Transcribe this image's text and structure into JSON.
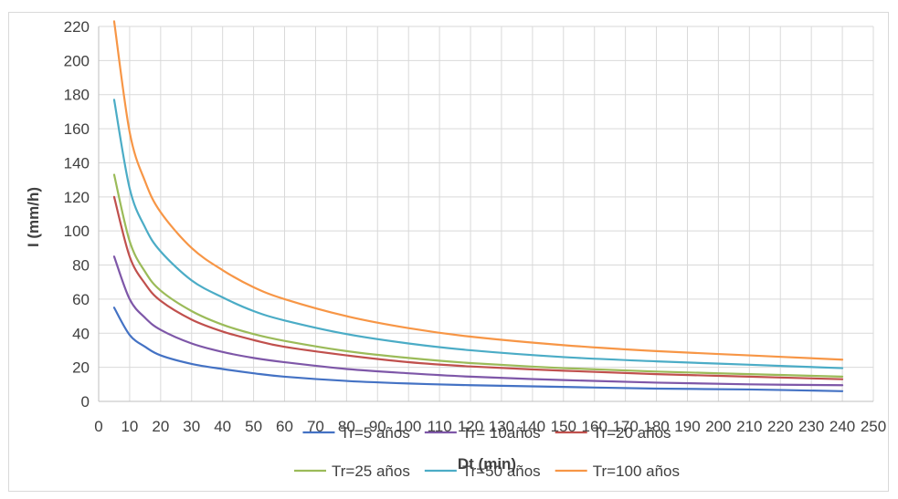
{
  "chart_data": {
    "type": "line",
    "xlabel": "Dt (min)",
    "ylabel": "I (mm/h)",
    "xlim": [
      0,
      250
    ],
    "ylim": [
      0,
      220
    ],
    "x_ticks": [
      0,
      10,
      20,
      30,
      40,
      50,
      60,
      70,
      80,
      90,
      100,
      110,
      120,
      130,
      140,
      150,
      160,
      170,
      180,
      190,
      200,
      210,
      220,
      230,
      240,
      250
    ],
    "y_ticks": [
      0,
      20,
      40,
      60,
      80,
      100,
      120,
      140,
      160,
      180,
      200,
      220
    ],
    "grid": true,
    "legend_position": "bottom",
    "x": [
      5,
      10,
      15,
      20,
      30,
      40,
      50,
      60,
      80,
      100,
      120,
      150,
      180,
      210,
      240
    ],
    "series": [
      {
        "name": "Tr=5 años",
        "color": "#4472C4",
        "values": [
          55,
          39,
          32,
          27,
          22,
          19,
          16.5,
          14.5,
          12,
          10.5,
          9.5,
          8.5,
          7.5,
          7,
          6
        ]
      },
      {
        "name": "Tr= 10años",
        "color": "#7E57A8",
        "values": [
          85,
          60,
          49,
          42,
          34,
          29,
          25.5,
          23,
          19,
          16.5,
          14.5,
          12.5,
          11,
          10,
          9.5
        ]
      },
      {
        "name": "Tr=20 años",
        "color": "#C0504D",
        "values": [
          120,
          85,
          69,
          59,
          48,
          41,
          36,
          32,
          27,
          23,
          20.5,
          18,
          16,
          14.5,
          13
        ]
      },
      {
        "name": "Tr=25 años",
        "color": "#9BBB59",
        "values": [
          133,
          94,
          76,
          65,
          53,
          45,
          39.5,
          35.5,
          29.5,
          25.5,
          22.5,
          19.5,
          17.5,
          16,
          14.5
        ]
      },
      {
        "name": "Tr=50 años",
        "color": "#4BACC6",
        "values": [
          177,
          125,
          102,
          88,
          71,
          61,
          53,
          47.5,
          39.5,
          34,
          30,
          26,
          23.5,
          21.5,
          19.5
        ]
      },
      {
        "name": "Tr=100 años",
        "color": "#F79646",
        "values": [
          223,
          158,
          129,
          111,
          90,
          77,
          67,
          60,
          50,
          43,
          38,
          33,
          29.5,
          27,
          24.5
        ]
      }
    ]
  }
}
